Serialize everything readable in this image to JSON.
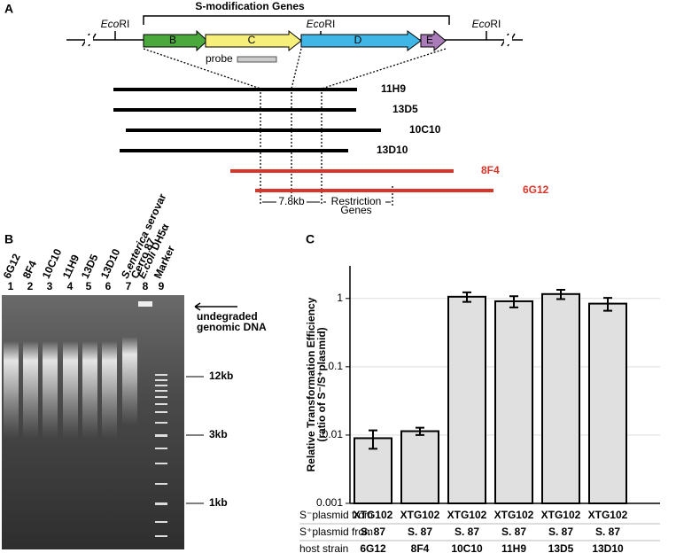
{
  "panel_a": {
    "label": "A",
    "title": "S-modification Genes",
    "ecori": [
      {
        "italic": "Eco",
        "plain": "RI"
      },
      {
        "italic": "Eco",
        "plain": "RI"
      },
      {
        "italic": "Eco",
        "plain": "RI"
      }
    ],
    "genes": [
      "B",
      "C",
      "D",
      "E"
    ],
    "probe": "probe",
    "clones": [
      {
        "name": "11H9"
      },
      {
        "name": "13D5"
      },
      {
        "name": "10C10"
      },
      {
        "name": "13D10"
      },
      {
        "name": "8F4"
      },
      {
        "name": "6G12"
      }
    ],
    "distance": "7.8kb",
    "restriction": [
      "Restriction",
      "Genes"
    ]
  },
  "panel_b": {
    "label": "B",
    "lanes": [
      {
        "number": "1",
        "lines": [
          [
            {
              "text": "6G12"
            }
          ]
        ]
      },
      {
        "number": "2",
        "lines": [
          [
            {
              "text": "8F4"
            }
          ]
        ]
      },
      {
        "number": "3",
        "lines": [
          [
            {
              "text": "10C10"
            }
          ]
        ]
      },
      {
        "number": "4",
        "lines": [
          [
            {
              "text": "11H9"
            }
          ]
        ]
      },
      {
        "number": "5",
        "lines": [
          [
            {
              "text": "13D5"
            }
          ]
        ]
      },
      {
        "number": "6",
        "lines": [
          [
            {
              "text": "13D10"
            }
          ]
        ]
      },
      {
        "number": "7",
        "lines": [
          [
            {
              "text": "S.enterica",
              "italic": true
            },
            {
              "text": " serovar"
            }
          ],
          [
            {
              "text": "Cerro 87"
            }
          ]
        ]
      },
      {
        "number": "8",
        "lines": [
          [
            {
              "text": "E.coli",
              "italic": true
            },
            {
              "text": " DH5α"
            }
          ]
        ]
      },
      {
        "number": "9",
        "lines": [
          [
            {
              "text": "Marker"
            }
          ]
        ]
      }
    ],
    "annotation": [
      "undegraded",
      "genomic DNA"
    ],
    "sizes": [
      "12kb",
      "3kb",
      "1kb"
    ]
  },
  "panel_c": {
    "label": "C"
  },
  "chart_data": {
    "type": "bar",
    "y_label": "Relative Transformation Efficiency",
    "y_sublabel": "(ratio of S⁻/S⁺plasmid)",
    "categories": [
      "6G12",
      "8F4",
      "10C10",
      "11H9",
      "13D5",
      "13D10"
    ],
    "category_label": "host strain",
    "values": [
      0.009,
      0.0114,
      1.06,
      0.91,
      1.16,
      0.84
    ],
    "errors": [
      0.0027,
      0.0014,
      0.17,
      0.17,
      0.18,
      0.18
    ],
    "color": "#e0e0e0",
    "log_y": true,
    "grid": true,
    "ylim": [
      0.001,
      3
    ],
    "yticks": [
      0.001,
      0.01,
      0.1,
      1
    ],
    "rows": [
      {
        "label": "S⁻plasmid from",
        "cells": [
          "XTG102",
          "XTG102",
          "XTG102",
          "XTG102",
          "XTG102",
          "XTG102"
        ]
      },
      {
        "label": "S⁺plasmid from",
        "cells": [
          "S. 87",
          "S. 87",
          "S. 87",
          "S. 87",
          "S. 87",
          "S. 87"
        ]
      }
    ]
  }
}
